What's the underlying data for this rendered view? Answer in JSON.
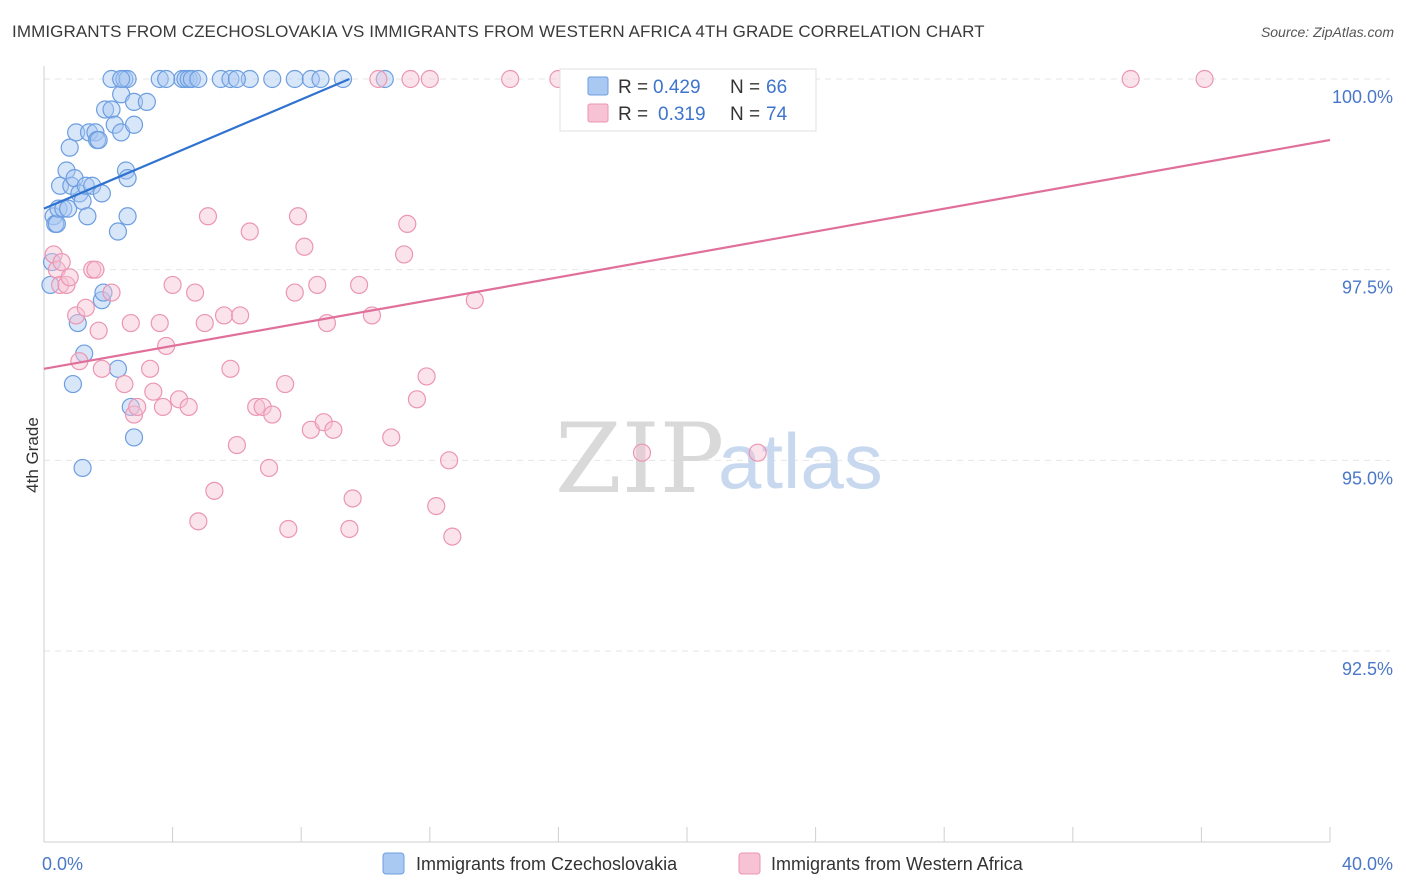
{
  "header": {
    "title": "IMMIGRANTS FROM CZECHOSLOVAKIA VS IMMIGRANTS FROM WESTERN AFRICA 4TH GRADE CORRELATION CHART",
    "source": "Source: ZipAtlas.com"
  },
  "watermark": {
    "zip": "ZIP",
    "atlas": "atlas"
  },
  "colors": {
    "blue_fill": "#a9c8f2",
    "blue_stroke": "#6d9ee0",
    "blue_line": "#2f72d0",
    "pink_fill": "#f7c2d3",
    "pink_stroke": "#eb96b2",
    "pink_line": "#e0709a",
    "grid": "#e6e6e6",
    "tick_text": "#4a78c8"
  },
  "chart_data": {
    "type": "scatter",
    "title": "IMMIGRANTS FROM CZECHOSLOVAKIA VS IMMIGRANTS FROM WESTERN AFRICA 4TH GRADE CORRELATION CHART",
    "xlabel": "",
    "ylabel": "4th Grade",
    "xlim": [
      0,
      40
    ],
    "ylim": [
      90.3,
      100.5
    ],
    "x_tick_labels": [
      {
        "value": 0,
        "label": "0.0%"
      },
      {
        "value": 40,
        "label": "40.0%"
      }
    ],
    "y_tick_labels": [
      {
        "value": 100,
        "label": "100.0%"
      },
      {
        "value": 97.5,
        "label": "97.5%"
      },
      {
        "value": 95,
        "label": "95.0%"
      },
      {
        "value": 92.5,
        "label": "92.5%"
      }
    ],
    "stats": [
      {
        "r_label": "R =",
        "r_value": "0.429",
        "n_label": "N =",
        "n_value": "66"
      },
      {
        "r_label": "R =",
        "r_value": "0.319",
        "n_label": "N =",
        "n_value": "74"
      }
    ],
    "series": [
      {
        "name": "Immigrants from Czechoslovakia",
        "color": "blue",
        "trend": {
          "x": [
            0.0,
            9.5
          ],
          "y": [
            98.3,
            100.0
          ]
        },
        "points": [
          [
            0.2,
            97.3
          ],
          [
            0.25,
            97.6
          ],
          [
            0.3,
            98.2
          ],
          [
            0.35,
            98.1
          ],
          [
            0.4,
            98.1
          ],
          [
            0.45,
            98.3
          ],
          [
            0.5,
            98.6
          ],
          [
            0.6,
            98.3
          ],
          [
            0.7,
            98.8
          ],
          [
            0.75,
            98.3
          ],
          [
            0.8,
            99.1
          ],
          [
            0.85,
            98.6
          ],
          [
            0.9,
            96.0
          ],
          [
            0.95,
            98.7
          ],
          [
            1.0,
            99.3
          ],
          [
            1.05,
            96.8
          ],
          [
            1.1,
            98.5
          ],
          [
            1.2,
            98.4
          ],
          [
            1.3,
            98.6
          ],
          [
            1.35,
            98.2
          ],
          [
            1.2,
            94.9
          ],
          [
            1.25,
            96.4
          ],
          [
            1.4,
            99.3
          ],
          [
            1.5,
            98.6
          ],
          [
            1.6,
            99.3
          ],
          [
            1.65,
            99.2
          ],
          [
            1.7,
            99.2
          ],
          [
            1.8,
            98.5
          ],
          [
            1.8,
            97.1
          ],
          [
            1.85,
            97.2
          ],
          [
            1.9,
            99.6
          ],
          [
            2.1,
            100.0
          ],
          [
            2.1,
            99.6
          ],
          [
            2.2,
            99.4
          ],
          [
            2.3,
            98.0
          ],
          [
            2.4,
            99.3
          ],
          [
            2.5,
            100.0
          ],
          [
            2.4,
            99.8
          ],
          [
            2.3,
            96.2
          ],
          [
            2.6,
            100.0
          ],
          [
            2.55,
            98.8
          ],
          [
            2.6,
            98.7
          ],
          [
            2.6,
            98.2
          ],
          [
            2.7,
            95.7
          ],
          [
            2.8,
            99.7
          ],
          [
            2.8,
            99.4
          ],
          [
            2.8,
            95.3
          ],
          [
            3.2,
            99.7
          ],
          [
            3.6,
            100.0
          ],
          [
            4.3,
            100.0
          ],
          [
            4.4,
            100.0
          ],
          [
            4.5,
            100.0
          ],
          [
            4.6,
            100.0
          ],
          [
            5.5,
            100.0
          ],
          [
            5.8,
            100.0
          ],
          [
            6.4,
            100.0
          ],
          [
            7.1,
            100.0
          ],
          [
            7.8,
            100.0
          ],
          [
            8.3,
            100.0
          ],
          [
            9.3,
            100.0
          ],
          [
            10.6,
            100.0
          ],
          [
            4.8,
            100.0
          ],
          [
            6.0,
            100.0
          ],
          [
            8.6,
            100.0
          ],
          [
            3.8,
            100.0
          ],
          [
            2.4,
            100.0
          ]
        ]
      },
      {
        "name": "Immigrants from Western Africa",
        "color": "pink",
        "trend": {
          "x": [
            0.0,
            40.0
          ],
          "y": [
            96.2,
            99.2
          ]
        },
        "points": [
          [
            0.3,
            97.7
          ],
          [
            0.4,
            97.5
          ],
          [
            0.5,
            97.3
          ],
          [
            0.55,
            97.6
          ],
          [
            0.7,
            97.3
          ],
          [
            0.8,
            97.4
          ],
          [
            1.0,
            96.9
          ],
          [
            1.1,
            96.3
          ],
          [
            1.3,
            97.0
          ],
          [
            1.5,
            97.5
          ],
          [
            1.6,
            97.5
          ],
          [
            1.7,
            96.7
          ],
          [
            1.8,
            96.2
          ],
          [
            2.1,
            97.2
          ],
          [
            2.5,
            96.0
          ],
          [
            2.7,
            96.8
          ],
          [
            2.8,
            95.6
          ],
          [
            2.9,
            95.7
          ],
          [
            3.3,
            96.2
          ],
          [
            3.4,
            95.9
          ],
          [
            3.6,
            96.8
          ],
          [
            3.7,
            95.7
          ],
          [
            3.8,
            96.5
          ],
          [
            4.0,
            97.3
          ],
          [
            4.2,
            95.8
          ],
          [
            4.5,
            95.7
          ],
          [
            4.7,
            97.2
          ],
          [
            4.8,
            94.2
          ],
          [
            5.0,
            96.8
          ],
          [
            5.1,
            98.2
          ],
          [
            5.3,
            94.6
          ],
          [
            5.6,
            96.9
          ],
          [
            5.8,
            96.2
          ],
          [
            6.0,
            95.2
          ],
          [
            6.1,
            96.9
          ],
          [
            6.4,
            98.0
          ],
          [
            6.6,
            95.7
          ],
          [
            6.8,
            95.7
          ],
          [
            7.0,
            94.9
          ],
          [
            7.1,
            95.6
          ],
          [
            7.5,
            96.0
          ],
          [
            7.6,
            94.1
          ],
          [
            7.8,
            97.2
          ],
          [
            7.9,
            98.2
          ],
          [
            8.1,
            97.8
          ],
          [
            8.3,
            95.4
          ],
          [
            8.5,
            97.3
          ],
          [
            8.7,
            95.5
          ],
          [
            8.8,
            96.8
          ],
          [
            9.0,
            95.4
          ],
          [
            9.5,
            94.1
          ],
          [
            9.6,
            94.5
          ],
          [
            9.8,
            97.3
          ],
          [
            10.2,
            96.9
          ],
          [
            10.8,
            95.3
          ],
          [
            11.2,
            97.7
          ],
          [
            11.3,
            98.1
          ],
          [
            11.6,
            95.8
          ],
          [
            11.9,
            96.1
          ],
          [
            12.2,
            94.4
          ],
          [
            12.6,
            95.0
          ],
          [
            12.7,
            94.0
          ],
          [
            13.4,
            97.1
          ],
          [
            14.5,
            100.0
          ],
          [
            16.0,
            100.0
          ],
          [
            17.0,
            100.0
          ],
          [
            18.3,
            100.0
          ],
          [
            18.6,
            95.1
          ],
          [
            22.2,
            95.1
          ],
          [
            33.8,
            100.0
          ],
          [
            36.1,
            100.0
          ],
          [
            10.4,
            100.0
          ],
          [
            11.4,
            100.0
          ],
          [
            12.0,
            100.0
          ]
        ]
      }
    ]
  }
}
